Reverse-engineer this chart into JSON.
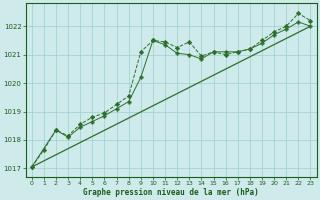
{
  "title": "Graphe pression niveau de la mer (hPa)",
  "bg_color": "#ceeaea",
  "line_color": "#2d6e2d",
  "grid_color": "#9ecfcf",
  "text_color": "#1a5c1a",
  "xlim": [
    -0.5,
    23.5
  ],
  "ylim": [
    1016.7,
    1022.8
  ],
  "yticks": [
    1017,
    1018,
    1019,
    1020,
    1021,
    1022
  ],
  "xticks": [
    0,
    1,
    2,
    3,
    4,
    5,
    6,
    7,
    8,
    9,
    10,
    11,
    12,
    13,
    14,
    15,
    16,
    17,
    18,
    19,
    20,
    21,
    22,
    23
  ],
  "line1_x": [
    0,
    1,
    2,
    3,
    4,
    5,
    6,
    7,
    8,
    9,
    10,
    11,
    12,
    13,
    14,
    15,
    16,
    17,
    18,
    19,
    20,
    21,
    22,
    23
  ],
  "line1_y": [
    1017.05,
    1017.65,
    1018.35,
    1018.15,
    1018.55,
    1018.8,
    1018.95,
    1019.25,
    1019.55,
    1021.1,
    1021.5,
    1021.45,
    1021.25,
    1021.45,
    1020.95,
    1021.1,
    1021.0,
    1021.1,
    1021.2,
    1021.5,
    1021.8,
    1022.0,
    1022.45,
    1022.2
  ],
  "line2_x": [
    0,
    2,
    3,
    4,
    5,
    6,
    7,
    8,
    9,
    10,
    11,
    12,
    13,
    14,
    15,
    16,
    17,
    18,
    19,
    20,
    21,
    22,
    23
  ],
  "line2_y": [
    1017.05,
    1018.35,
    1018.1,
    1018.45,
    1018.65,
    1018.85,
    1019.1,
    1019.35,
    1020.2,
    1021.5,
    1021.35,
    1021.05,
    1021.0,
    1020.85,
    1021.1,
    1021.1,
    1021.1,
    1021.2,
    1021.4,
    1021.7,
    1021.9,
    1022.15,
    1022.0
  ],
  "line3_x": [
    0,
    23
  ],
  "line3_y": [
    1017.05,
    1022.0
  ]
}
